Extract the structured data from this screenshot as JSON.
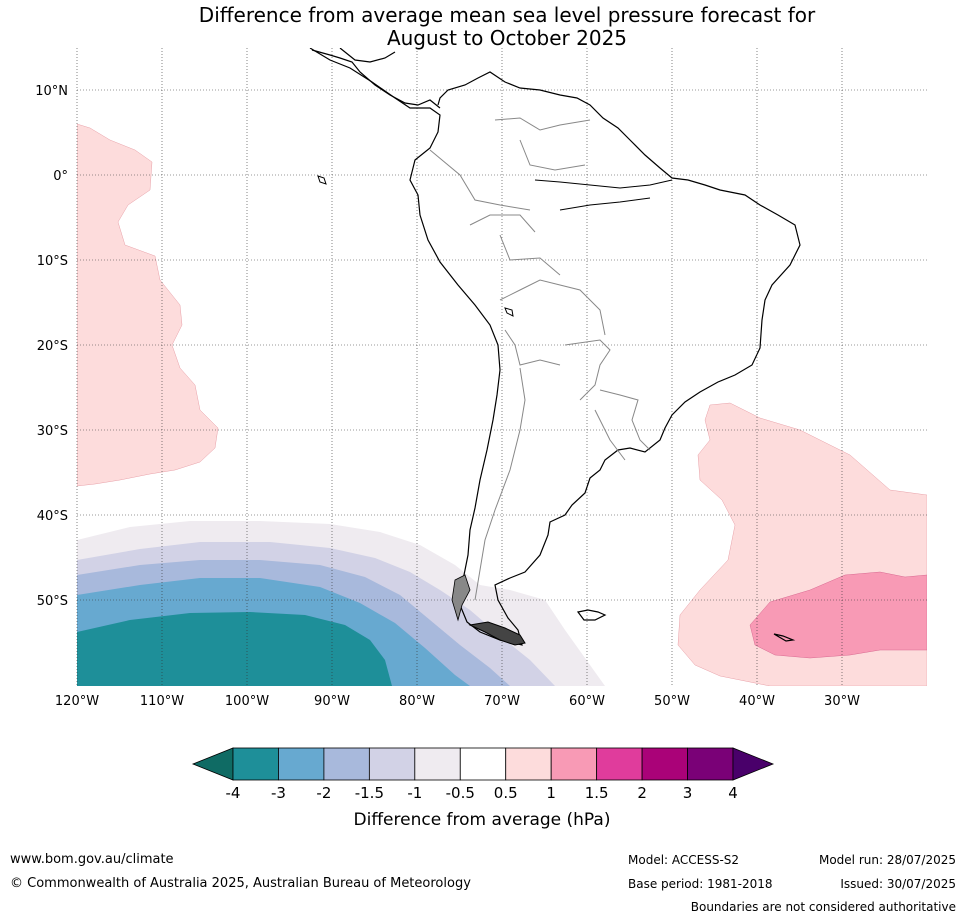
{
  "title": {
    "line1": "Difference from average mean sea level pressure forecast for",
    "line2": "August to October 2025"
  },
  "map": {
    "lat_labels": [
      "10°N",
      "0°",
      "10°S",
      "20°S",
      "30°S",
      "40°S",
      "50°S"
    ],
    "lon_labels": [
      "120°W",
      "110°W",
      "100°W",
      "90°W",
      "80°W",
      "70°W",
      "60°W",
      "50°W",
      "40°W",
      "30°W"
    ]
  },
  "colorbar": {
    "ticks": [
      "-4",
      "-3",
      "-2",
      "-1.5",
      "-1",
      "-0.5",
      "0.5",
      "1",
      "1.5",
      "2",
      "3",
      "4"
    ],
    "colors": [
      "#0f6b64",
      "#1e8f99",
      "#67a9d0",
      "#a8b9dc",
      "#d2d2e6",
      "#efebf0",
      "#ffffff",
      "#fddcdc",
      "#f89ab5",
      "#e03c9c",
      "#aa0278",
      "#7a0177",
      "#49006a"
    ],
    "label": "Difference from average (hPa)"
  },
  "footer": {
    "website": "www.bom.gov.au/climate",
    "copyright": "© Commonwealth of Australia 2025, Australian Bureau of Meteorology",
    "model": "Model: ACCESS-S2",
    "base_period": "Base period: 1981-2018",
    "model_run": "Model run: 28/07/2025",
    "issued": "Issued: 30/07/2025",
    "disclaimer": "Boundaries are not considered authoritative"
  }
}
